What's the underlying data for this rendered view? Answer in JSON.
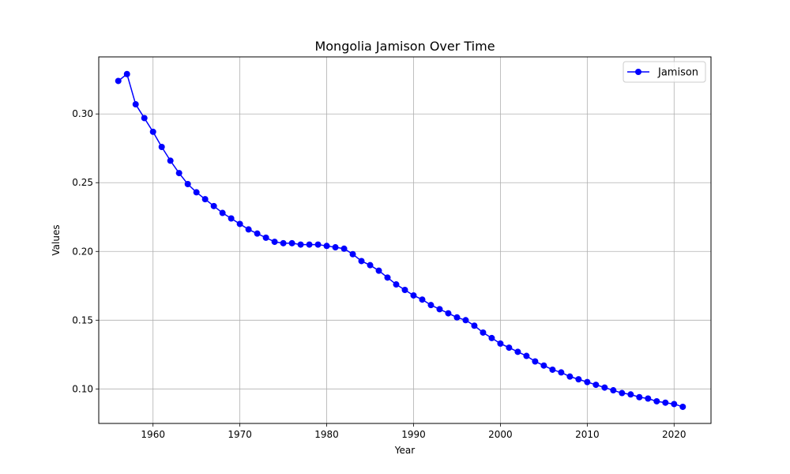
{
  "chart_data": {
    "type": "line",
    "title": "Mongolia Jamison Over Time",
    "xlabel": "Year",
    "ylabel": "Values",
    "xlim": [
      1953.75,
      2024.25
    ],
    "ylim": [
      0.0749,
      0.3415
    ],
    "x_ticks": [
      1960,
      1970,
      1980,
      1990,
      2000,
      2010,
      2020
    ],
    "y_ticks": [
      0.1,
      0.15,
      0.2,
      0.25,
      0.3
    ],
    "y_tick_labels": [
      "0.10",
      "0.15",
      "0.20",
      "0.25",
      "0.30"
    ],
    "grid": true,
    "legend_position": "top-right",
    "series": [
      {
        "name": "Jamison",
        "color": "#0000ff",
        "marker": "circle",
        "x": [
          1956,
          1957,
          1958,
          1959,
          1960,
          1961,
          1962,
          1963,
          1964,
          1965,
          1966,
          1967,
          1968,
          1969,
          1970,
          1971,
          1972,
          1973,
          1974,
          1975,
          1976,
          1977,
          1978,
          1979,
          1980,
          1981,
          1982,
          1983,
          1984,
          1985,
          1986,
          1987,
          1988,
          1989,
          1990,
          1991,
          1992,
          1993,
          1994,
          1995,
          1996,
          1997,
          1998,
          1999,
          2000,
          2001,
          2002,
          2003,
          2004,
          2005,
          2006,
          2007,
          2008,
          2009,
          2010,
          2011,
          2012,
          2013,
          2014,
          2015,
          2016,
          2017,
          2018,
          2019,
          2020,
          2021
        ],
        "values": [
          0.324,
          0.329,
          0.307,
          0.297,
          0.287,
          0.276,
          0.266,
          0.257,
          0.249,
          0.243,
          0.238,
          0.233,
          0.228,
          0.224,
          0.22,
          0.216,
          0.213,
          0.21,
          0.207,
          0.206,
          0.206,
          0.205,
          0.205,
          0.205,
          0.204,
          0.203,
          0.202,
          0.198,
          0.193,
          0.19,
          0.186,
          0.181,
          0.176,
          0.172,
          0.168,
          0.165,
          0.161,
          0.158,
          0.155,
          0.152,
          0.15,
          0.146,
          0.141,
          0.137,
          0.133,
          0.13,
          0.127,
          0.124,
          0.12,
          0.117,
          0.114,
          0.112,
          0.109,
          0.107,
          0.105,
          0.103,
          0.101,
          0.099,
          0.097,
          0.096,
          0.094,
          0.093,
          0.091,
          0.09,
          0.089,
          0.087
        ]
      }
    ]
  }
}
